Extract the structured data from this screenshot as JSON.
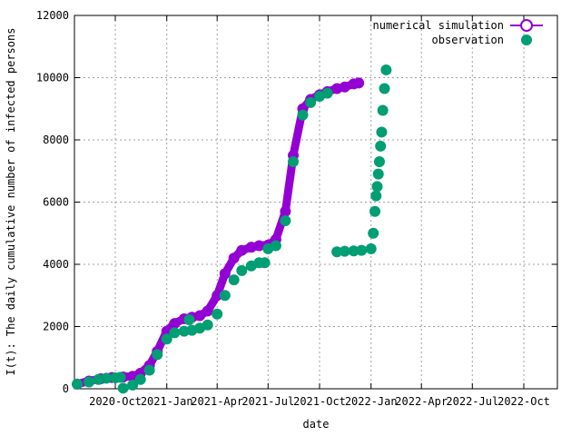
{
  "chart_data": {
    "type": "scatter",
    "xlabel": "date",
    "ylabel": "I(t): The daily cumulative number of infected persons",
    "xlim": [
      "2020-07-20",
      "2022-11-30"
    ],
    "ylim": [
      0,
      12000
    ],
    "y_ticks": [
      0,
      2000,
      4000,
      6000,
      8000,
      10000,
      12000
    ],
    "x_ticks": [
      {
        "date": "2020-10-01",
        "label": "2020-Oct"
      },
      {
        "date": "2021-01-01",
        "label": "2021-Jan"
      },
      {
        "date": "2021-04-01",
        "label": "2021-Apr"
      },
      {
        "date": "2021-07-01",
        "label": "2021-Jul"
      },
      {
        "date": "2021-10-01",
        "label": "2021-Oct"
      },
      {
        "date": "2022-01-01",
        "label": "2022-Jan"
      },
      {
        "date": "2022-04-01",
        "label": "2022-Apr"
      },
      {
        "date": "2022-07-01",
        "label": "2022-Jul"
      },
      {
        "date": "2022-10-01",
        "label": "2022-Oct"
      }
    ],
    "grid": true,
    "legend_position": "top-right",
    "series": [
      {
        "name": "numerical simulation",
        "color": "#9400d3",
        "marker": "open-circle-line",
        "points": [
          [
            "2020-07-25",
            150
          ],
          [
            "2020-08-15",
            250
          ],
          [
            "2020-09-05",
            320
          ],
          [
            "2020-09-25",
            360
          ],
          [
            "2020-10-15",
            380
          ],
          [
            "2020-11-01",
            400
          ],
          [
            "2020-11-15",
            500
          ],
          [
            "2020-12-01",
            750
          ],
          [
            "2020-12-15",
            1200
          ],
          [
            "2021-01-01",
            1850
          ],
          [
            "2021-01-15",
            2100
          ],
          [
            "2021-02-01",
            2250
          ],
          [
            "2021-02-15",
            2300
          ],
          [
            "2021-03-01",
            2350
          ],
          [
            "2021-03-15",
            2500
          ],
          [
            "2021-04-01",
            3000
          ],
          [
            "2021-04-15",
            3700
          ],
          [
            "2021-05-01",
            4200
          ],
          [
            "2021-05-15",
            4450
          ],
          [
            "2021-06-01",
            4550
          ],
          [
            "2021-06-15",
            4600
          ],
          [
            "2021-07-01",
            4620
          ],
          [
            "2021-07-15",
            4800
          ],
          [
            "2021-08-01",
            5700
          ],
          [
            "2021-08-15",
            7500
          ],
          [
            "2021-09-01",
            9000
          ],
          [
            "2021-09-15",
            9300
          ],
          [
            "2021-10-01",
            9450
          ],
          [
            "2021-10-15",
            9550
          ],
          [
            "2021-11-01",
            9650
          ],
          [
            "2021-11-15",
            9700
          ],
          [
            "2021-12-01",
            9800
          ],
          [
            "2021-12-10",
            9830
          ]
        ]
      },
      {
        "name": "observation",
        "color": "#009e73",
        "marker": "filled-circle",
        "points": [
          [
            "2020-07-25",
            150
          ],
          [
            "2020-08-15",
            220
          ],
          [
            "2020-09-01",
            300
          ],
          [
            "2020-09-15",
            340
          ],
          [
            "2020-10-01",
            350
          ],
          [
            "2020-10-10",
            370
          ],
          [
            "2020-10-15",
            20
          ],
          [
            "2020-11-01",
            120
          ],
          [
            "2020-11-15",
            300
          ],
          [
            "2020-12-01",
            600
          ],
          [
            "2020-12-15",
            1100
          ],
          [
            "2021-01-01",
            1600
          ],
          [
            "2021-01-15",
            1800
          ],
          [
            "2021-02-01",
            1850
          ],
          [
            "2021-02-10",
            2220
          ],
          [
            "2021-02-15",
            1880
          ],
          [
            "2021-03-01",
            1950
          ],
          [
            "2021-03-15",
            2050
          ],
          [
            "2021-04-01",
            2400
          ],
          [
            "2021-04-15",
            3000
          ],
          [
            "2021-05-01",
            3500
          ],
          [
            "2021-05-15",
            3800
          ],
          [
            "2021-06-01",
            3950
          ],
          [
            "2021-06-15",
            4050
          ],
          [
            "2021-06-25",
            4050
          ],
          [
            "2021-07-01",
            4500
          ],
          [
            "2021-07-15",
            4600
          ],
          [
            "2021-08-01",
            5400
          ],
          [
            "2021-08-15",
            7300
          ],
          [
            "2021-09-01",
            8800
          ],
          [
            "2021-09-15",
            9200
          ],
          [
            "2021-10-01",
            9400
          ],
          [
            "2021-10-15",
            9500
          ],
          [
            "2021-11-01",
            4400
          ],
          [
            "2021-11-15",
            4420
          ],
          [
            "2021-12-01",
            4430
          ],
          [
            "2021-12-15",
            4450
          ],
          [
            "2022-01-01",
            4500
          ],
          [
            "2022-01-05",
            5000
          ],
          [
            "2022-01-08",
            5700
          ],
          [
            "2022-01-10",
            6200
          ],
          [
            "2022-01-12",
            6500
          ],
          [
            "2022-01-14",
            6900
          ],
          [
            "2022-01-16",
            7300
          ],
          [
            "2022-01-18",
            7800
          ],
          [
            "2022-01-20",
            8250
          ],
          [
            "2022-01-22",
            8950
          ],
          [
            "2022-01-25",
            9650
          ],
          [
            "2022-01-28",
            10250
          ]
        ]
      }
    ]
  }
}
